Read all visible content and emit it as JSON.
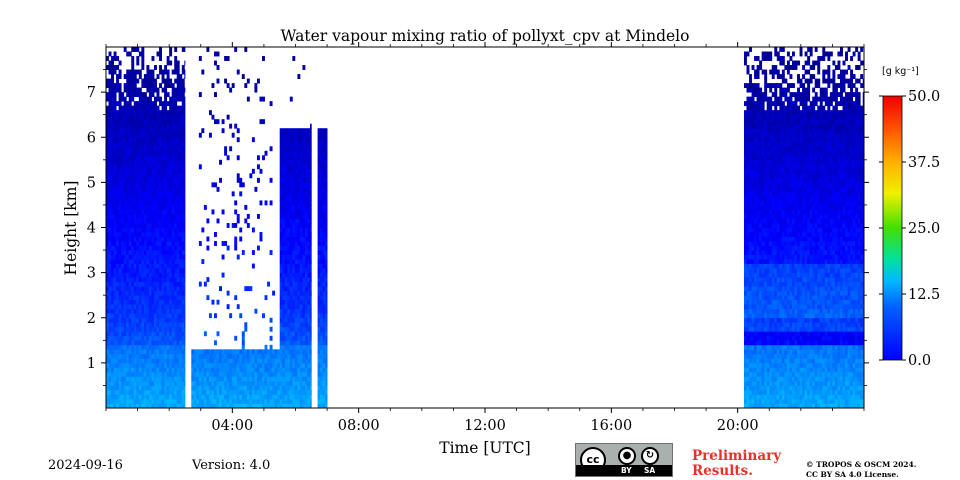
{
  "chart_data": {
    "type": "heatmap",
    "title": "Water vapour mixing ratio of pollyxt_cpv at Mindelo",
    "xlabel": "Time [UTC]",
    "ylabel": "Height [km]",
    "xlim": [
      0,
      24
    ],
    "ylim": [
      0,
      8
    ],
    "x_ticks": [
      4,
      8,
      12,
      16,
      20
    ],
    "x_tick_labels": [
      "04:00",
      "08:00",
      "12:00",
      "16:00",
      "20:00"
    ],
    "y_ticks": [
      1,
      2,
      3,
      4,
      5,
      6,
      7
    ],
    "y_tick_labels": [
      "1",
      "2",
      "3",
      "4",
      "5",
      "6",
      "7"
    ],
    "colorbar": {
      "unit": "[g kg⁻¹]",
      "range": [
        0.0,
        50.0
      ],
      "ticks": [
        0.0,
        12.5,
        25.0,
        37.5,
        50.0
      ],
      "tick_labels": [
        "0.0",
        "12.5",
        "25.0",
        "37.5",
        "50.0"
      ],
      "colormap": "jet"
    },
    "segments": [
      {
        "start_h": 0.0,
        "end_h": 2.5,
        "description": "continuous profile, ~14 g/kg near surface, decreasing with height, noisy above 6.5 km"
      },
      {
        "start_h": 2.7,
        "end_h": 6.5,
        "description": "profile with cloud gaps above ~1.3 km, valid to ~6 km after 05:30"
      },
      {
        "start_h": 6.7,
        "end_h": 7.0,
        "description": "short segment up to ~6 km"
      },
      {
        "start_h": 20.2,
        "end_h": 24.0,
        "description": "continuous profile, moist layer below 1.5 km, moist band 2-3 km, noisy above 6.5 km"
      }
    ],
    "colors": {
      "low": "#0000c0",
      "mid": "#00c0ff",
      "high_mid": "#40e040",
      "high": "#ff2000"
    }
  },
  "footer": {
    "date": "2024-09-16",
    "version": "Version: 4.0",
    "preliminary_line1": "Preliminary",
    "preliminary_line2": "Results.",
    "copyright_line1": "© TROPOS & OSCM 2024.",
    "copyright_line2": "CC BY SA 4.0 License.",
    "cc_label": "cc",
    "by_label": "BY",
    "sa_label": "SA"
  }
}
